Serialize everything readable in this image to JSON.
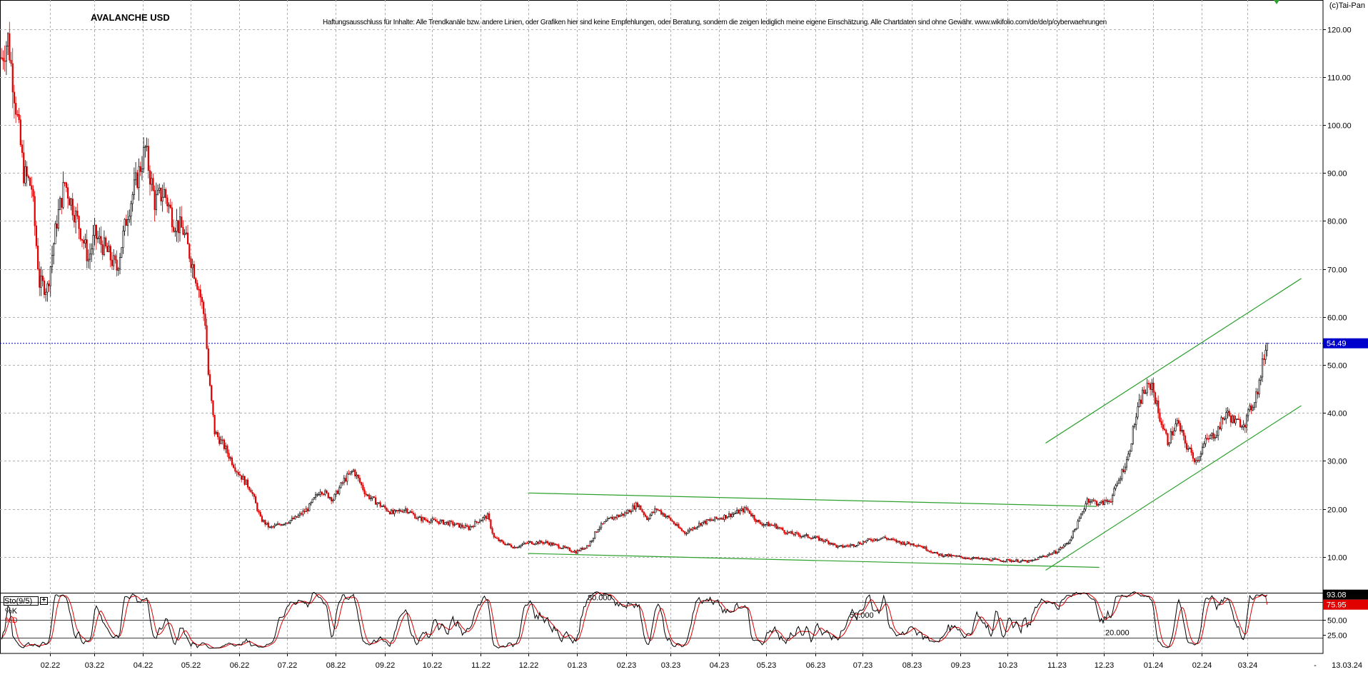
{
  "header": {
    "title": "AVALANCHE USD",
    "disclaimer": "Haftungsausschluss für Inhalte: Alle Trendkanäle bzw. andere Linien, oder Grafiken hier sind keine Empfehlungen, oder Beratung, sondern die zeigen lediglich meine eigene Einschätzung. Alle Chartdaten sind ohne Gewähr. www.wikifolio.com/de/de/p/cyberwaehrungen",
    "copyright": "(c)Tai-Pan"
  },
  "colors": {
    "up_candle": "#000000",
    "down_candle": "#e00000",
    "trendline": "#2ca02c",
    "current_price": "#0000cc",
    "k_line": "#000000",
    "d_line": "#e00000",
    "grid": "#b0b0b0"
  },
  "chart_data": [
    {
      "type": "candlestick",
      "title": "AVALANCHE USD",
      "y_scale": "linear",
      "ylim": [
        0,
        124
      ],
      "yticks": [
        "10.00",
        "20.00",
        "30.00",
        "40.00",
        "50.00",
        "60.00",
        "70.00",
        "80.00",
        "90.00",
        "100.00",
        "110.00",
        "120.00"
      ],
      "x_date_range": [
        "2022-01-01",
        "2024-03-13"
      ],
      "x_ticks": [
        {
          "label": "02.22",
          "date": "2022-02-01"
        },
        {
          "label": "03.22",
          "date": "2022-03-01"
        },
        {
          "label": "04.22",
          "date": "2022-04-01"
        },
        {
          "label": "05.22",
          "date": "2022-05-01"
        },
        {
          "label": "06.22",
          "date": "2022-06-01"
        },
        {
          "label": "07.22",
          "date": "2022-07-01"
        },
        {
          "label": "08.22",
          "date": "2022-08-01"
        },
        {
          "label": "09.22",
          "date": "2022-09-01"
        },
        {
          "label": "10.22",
          "date": "2022-10-01"
        },
        {
          "label": "11.22",
          "date": "2022-11-01"
        },
        {
          "label": "12.22",
          "date": "2022-12-01"
        },
        {
          "label": "01.23",
          "date": "2023-01-01"
        },
        {
          "label": "02.23",
          "date": "2023-02-01"
        },
        {
          "label": "03.23",
          "date": "2023-03-01"
        },
        {
          "label": "04.23",
          "date": "2023-04-01"
        },
        {
          "label": "05.23",
          "date": "2023-05-01"
        },
        {
          "label": "06.23",
          "date": "2023-06-01"
        },
        {
          "label": "07.23",
          "date": "2023-07-01"
        },
        {
          "label": "08.23",
          "date": "2023-08-01"
        },
        {
          "label": "09.23",
          "date": "2023-09-01"
        },
        {
          "label": "10.23",
          "date": "2023-10-01"
        },
        {
          "label": "11.23",
          "date": "2023-11-01"
        },
        {
          "label": "12.23",
          "date": "2023-12-01"
        },
        {
          "label": "01.24",
          "date": "2024-01-01"
        },
        {
          "label": "02.24",
          "date": "2024-02-01"
        },
        {
          "label": "03.24",
          "date": "2024-03-01"
        }
      ],
      "current_date_label": "13.03.24",
      "current_price": 54.49,
      "current_price_label": "54.49",
      "price_path": [
        [
          "2022-01-01",
          114
        ],
        [
          "2022-01-05",
          118
        ],
        [
          "2022-01-10",
          104
        ],
        [
          "2022-01-15",
          90
        ],
        [
          "2022-01-20",
          87
        ],
        [
          "2022-01-25",
          67
        ],
        [
          "2022-01-30",
          66
        ],
        [
          "2022-02-05",
          80
        ],
        [
          "2022-02-10",
          88
        ],
        [
          "2022-02-15",
          83
        ],
        [
          "2022-02-20",
          78
        ],
        [
          "2022-02-25",
          72
        ],
        [
          "2022-03-01",
          77
        ],
        [
          "2022-03-08",
          74
        ],
        [
          "2022-03-15",
          70
        ],
        [
          "2022-03-22",
          82
        ],
        [
          "2022-03-28",
          89
        ],
        [
          "2022-04-02",
          95
        ],
        [
          "2022-04-08",
          84
        ],
        [
          "2022-04-14",
          86
        ],
        [
          "2022-04-20",
          80
        ],
        [
          "2022-04-26",
          78
        ],
        [
          "2022-05-01",
          72
        ],
        [
          "2022-05-06",
          66
        ],
        [
          "2022-05-10",
          59
        ],
        [
          "2022-05-12",
          48
        ],
        [
          "2022-05-16",
          36
        ],
        [
          "2022-05-22",
          33
        ],
        [
          "2022-05-30",
          28
        ],
        [
          "2022-06-08",
          24
        ],
        [
          "2022-06-14",
          18
        ],
        [
          "2022-06-20",
          16
        ],
        [
          "2022-06-28",
          17
        ],
        [
          "2022-07-06",
          18
        ],
        [
          "2022-07-14",
          20
        ],
        [
          "2022-07-22",
          24
        ],
        [
          "2022-07-30",
          22
        ],
        [
          "2022-08-06",
          26
        ],
        [
          "2022-08-12",
          28
        ],
        [
          "2022-08-20",
          23
        ],
        [
          "2022-08-28",
          21
        ],
        [
          "2022-09-06",
          19
        ],
        [
          "2022-09-14",
          20
        ],
        [
          "2022-09-22",
          18
        ],
        [
          "2022-10-01",
          17.5
        ],
        [
          "2022-10-12",
          17
        ],
        [
          "2022-10-24",
          16
        ],
        [
          "2022-10-30",
          17.5
        ],
        [
          "2022-11-05",
          18.5
        ],
        [
          "2022-11-09",
          14
        ],
        [
          "2022-11-14",
          13
        ],
        [
          "2022-11-22",
          12
        ],
        [
          "2022-12-01",
          13
        ],
        [
          "2022-12-12",
          13
        ],
        [
          "2022-12-22",
          12
        ],
        [
          "2022-12-31",
          11
        ],
        [
          "2023-01-08",
          12.5
        ],
        [
          "2023-01-14",
          16
        ],
        [
          "2023-01-22",
          18
        ],
        [
          "2023-01-31",
          19
        ],
        [
          "2023-02-08",
          21
        ],
        [
          "2023-02-14",
          18
        ],
        [
          "2023-02-20",
          20
        ],
        [
          "2023-02-28",
          18
        ],
        [
          "2023-03-06",
          16
        ],
        [
          "2023-03-10",
          15
        ],
        [
          "2023-03-20",
          17
        ],
        [
          "2023-03-31",
          18
        ],
        [
          "2023-04-10",
          19
        ],
        [
          "2023-04-18",
          20
        ],
        [
          "2023-04-26",
          17
        ],
        [
          "2023-05-06",
          16.5
        ],
        [
          "2023-05-14",
          15
        ],
        [
          "2023-05-22",
          14.5
        ],
        [
          "2023-05-31",
          14
        ],
        [
          "2023-06-10",
          13
        ],
        [
          "2023-06-15",
          12
        ],
        [
          "2023-06-25",
          12.5
        ],
        [
          "2023-07-05",
          13.5
        ],
        [
          "2023-07-14",
          14
        ],
        [
          "2023-07-24",
          13
        ],
        [
          "2023-08-05",
          12.5
        ],
        [
          "2023-08-17",
          10.5
        ],
        [
          "2023-08-25",
          10.2
        ],
        [
          "2023-09-05",
          9.8
        ],
        [
          "2023-09-15",
          9.5
        ],
        [
          "2023-09-25",
          9.3
        ],
        [
          "2023-10-05",
          9.2
        ],
        [
          "2023-10-15",
          9.0
        ],
        [
          "2023-10-22",
          10.0
        ],
        [
          "2023-10-31",
          11.0
        ],
        [
          "2023-11-08",
          13
        ],
        [
          "2023-11-14",
          17
        ],
        [
          "2023-11-20",
          22
        ],
        [
          "2023-11-28",
          21
        ],
        [
          "2023-12-05",
          22
        ],
        [
          "2023-12-10",
          26
        ],
        [
          "2023-12-16",
          31
        ],
        [
          "2023-12-20",
          38
        ],
        [
          "2023-12-25",
          44
        ],
        [
          "2023-12-31",
          46
        ],
        [
          "2024-01-04",
          40
        ],
        [
          "2024-01-10",
          34
        ],
        [
          "2024-01-16",
          38
        ],
        [
          "2024-01-22",
          33
        ],
        [
          "2024-01-28",
          30
        ],
        [
          "2024-02-03",
          34
        ],
        [
          "2024-02-10",
          36
        ],
        [
          "2024-02-16",
          40
        ],
        [
          "2024-02-22",
          38
        ],
        [
          "2024-02-28",
          38
        ],
        [
          "2024-03-04",
          42
        ],
        [
          "2024-03-08",
          46
        ],
        [
          "2024-03-11",
          52
        ],
        [
          "2024-03-13",
          54.49
        ]
      ],
      "trendlines": [
        {
          "from": [
            "2022-12-01",
            23.3
          ],
          "to": [
            "2023-11-26",
            20.5
          ]
        },
        {
          "from": [
            "2022-12-01",
            10.7
          ],
          "to": [
            "2023-11-28",
            7.8
          ]
        },
        {
          "from": [
            "2023-10-25",
            33.7
          ],
          "to": [
            "2024-04-04",
            68.0
          ]
        },
        {
          "from": [
            "2023-10-25",
            7.2
          ],
          "to": [
            "2024-04-04",
            41.5
          ]
        }
      ]
    },
    {
      "type": "line",
      "title": "Sto(9/5)",
      "series": [
        {
          "name": "%K"
        },
        {
          "name": "%D"
        }
      ],
      "ylim": [
        0,
        100
      ],
      "levels": [
        {
          "value": 80,
          "label": "80.000"
        },
        {
          "value": 50,
          "label": "50.000"
        },
        {
          "value": 20,
          "label": "20.000"
        }
      ],
      "yticks": [
        "25.00",
        "50.00",
        "75.00"
      ],
      "last_k": 93.08,
      "last_k_label": "93.08",
      "last_d": 75.95,
      "last_d_label": "75.95"
    }
  ]
}
